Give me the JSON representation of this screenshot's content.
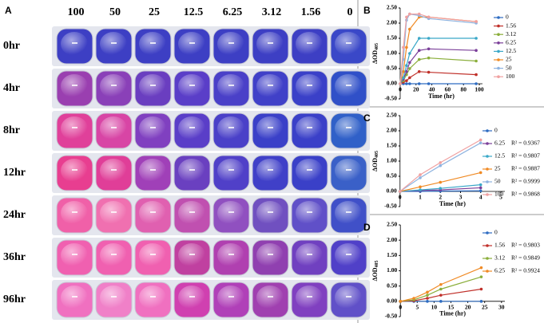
{
  "panel_a": {
    "label": "A",
    "columns": [
      "100",
      "50",
      "25",
      "12.5",
      "6.25",
      "3.12",
      "1.56",
      "0"
    ],
    "rows": [
      "0hr",
      "4hr",
      "8hr",
      "12hr",
      "24hr",
      "36hr",
      "96hr"
    ],
    "well_colors": [
      [
        "#3d3fc4",
        "#3d3fc4",
        "#3d3fc4",
        "#3d3fc4",
        "#3d3fc4",
        "#3d3fc4",
        "#3d3fc4",
        "#3a48c8"
      ],
      [
        "#9a3fb0",
        "#8a40b8",
        "#6a3ec0",
        "#5a3ec8",
        "#4a40c8",
        "#4040c8",
        "#3a40c8",
        "#3050c8"
      ],
      [
        "#e0409a",
        "#d845a5",
        "#8040c0",
        "#5a3ec8",
        "#4a40c8",
        "#3a40c8",
        "#3a40c8",
        "#3060c8"
      ],
      [
        "#e83e90",
        "#e03e98",
        "#a040b8",
        "#6a40c0",
        "#5040c8",
        "#4040c8",
        "#3a40c8",
        "#3a60c8"
      ],
      [
        "#f060a8",
        "#f070b0",
        "#e060b0",
        "#c050b0",
        "#9050c0",
        "#7050c0",
        "#6050c8",
        "#4050c8"
      ],
      [
        "#f060b0",
        "#f060b0",
        "#f060b0",
        "#c040a0",
        "#b040b0",
        "#9040b0",
        "#7040c0",
        "#5040c8"
      ],
      [
        "#f070c0",
        "#f080c8",
        "#f070c0",
        "#d040b0",
        "#b040b8",
        "#a040b0",
        "#8040c0",
        "#6050c8"
      ]
    ]
  },
  "chart_data": [
    {
      "type": "line",
      "panel": "B",
      "ylabel": "ΔOD",
      "ylabel_subscript": "405",
      "xlabel": "Time (hr)",
      "x": [
        0,
        4,
        8,
        12,
        24,
        36,
        96
      ],
      "xlim": [
        -4,
        104
      ],
      "xticks": [
        0,
        20,
        40,
        60,
        80,
        100
      ],
      "ylim": [
        -0.5,
        2.5
      ],
      "yticks": [
        {
          "value": -0.5,
          "label": "-0.50"
        },
        {
          "value": 0,
          "label": "0.00"
        },
        {
          "value": 0.5,
          "label": "0.50"
        },
        {
          "value": 1,
          "label": "1.00"
        },
        {
          "value": 1.5,
          "label": "1.50"
        },
        {
          "value": 2,
          "label": "2.00"
        },
        {
          "value": 2.5,
          "label": "2.50"
        }
      ],
      "series": [
        {
          "name": "0",
          "color": "#2e6cc2",
          "values": [
            0,
            0,
            0,
            0,
            0,
            0,
            0
          ]
        },
        {
          "name": "1.56",
          "color": "#c0302a",
          "values": [
            0,
            0.05,
            0.1,
            0.2,
            0.4,
            0.38,
            0.3
          ]
        },
        {
          "name": "3.12",
          "color": "#8aae3a",
          "values": [
            0,
            0.1,
            0.3,
            0.5,
            0.8,
            0.85,
            0.75
          ]
        },
        {
          "name": "6.25",
          "color": "#7b3f99",
          "values": [
            0,
            0.15,
            0.4,
            0.7,
            1.1,
            1.15,
            1.1
          ]
        },
        {
          "name": "12.5",
          "color": "#3aa8c8",
          "values": [
            0,
            0.2,
            0.6,
            1.0,
            1.5,
            1.5,
            1.5
          ]
        },
        {
          "name": "25",
          "color": "#f08a24",
          "values": [
            0,
            0.4,
            1.2,
            1.8,
            2.2,
            2.2,
            2.05
          ]
        },
        {
          "name": "50",
          "color": "#8fb4e0",
          "values": [
            0,
            0.8,
            2.1,
            2.3,
            2.25,
            2.15,
            2.0
          ]
        },
        {
          "name": "100",
          "color": "#f0a0a0",
          "values": [
            0,
            1.2,
            2.2,
            2.3,
            2.3,
            2.2,
            2.05
          ]
        }
      ]
    },
    {
      "type": "line",
      "panel": "C",
      "ylabel": "ΔOD",
      "ylabel_subscript": "405",
      "xlabel": "Time (hr)",
      "x": [
        0,
        1,
        2,
        4
      ],
      "xlim": [
        -0.15,
        5.2
      ],
      "xticks": [
        0,
        1,
        2,
        3,
        4,
        5
      ],
      "ylim": [
        -0.5,
        2.5
      ],
      "yticks": [
        {
          "value": -0.5,
          "label": "-0.50"
        },
        {
          "value": 0,
          "label": "0.00"
        },
        {
          "value": 0.5,
          "label": "0.50"
        },
        {
          "value": 1,
          "label": "1.00"
        },
        {
          "value": 1.5,
          "label": "1.50"
        },
        {
          "value": 2,
          "label": "2.00"
        },
        {
          "value": 2.5,
          "label": "2.50"
        }
      ],
      "series": [
        {
          "name": "0",
          "color": "#2e6cc2",
          "values": [
            0,
            0,
            0.01,
            0.02
          ]
        },
        {
          "name": "6.25",
          "color": "#7b3f99",
          "r2": "R² = 0.9367",
          "values": [
            0,
            0.03,
            0.05,
            0.12
          ]
        },
        {
          "name": "12.5",
          "color": "#3aa8c8",
          "r2": "R² = 0.9807",
          "values": [
            0,
            0.05,
            0.1,
            0.22
          ]
        },
        {
          "name": "25",
          "color": "#f08a24",
          "r2": "R² = 0.9887",
          "values": [
            0,
            0.15,
            0.3,
            0.62
          ]
        },
        {
          "name": "50",
          "color": "#8fb4e0",
          "r2": "R² = 0.9999",
          "values": [
            0,
            0.45,
            0.85,
            1.6
          ]
        },
        {
          "name": "100",
          "color": "#f0a0a0",
          "r2": "R² = 0.9868",
          "values": [
            0,
            0.55,
            0.95,
            1.7
          ]
        }
      ]
    },
    {
      "type": "line",
      "panel": "D",
      "ylabel": "ΔOD",
      "ylabel_subscript": "405",
      "xlabel": "Time (hr)",
      "x": [
        0,
        4,
        8,
        12,
        24
      ],
      "xlim": [
        -1,
        31
      ],
      "xticks": [
        0,
        5,
        10,
        15,
        20,
        25,
        30
      ],
      "ylim": [
        -0.5,
        2.5
      ],
      "yticks": [
        {
          "value": -0.5,
          "label": "-0.50"
        },
        {
          "value": 0,
          "label": "0.00"
        },
        {
          "value": 0.5,
          "label": "0.50"
        },
        {
          "value": 1,
          "label": "1.00"
        },
        {
          "value": 1.5,
          "label": "1.50"
        },
        {
          "value": 2,
          "label": "2.00"
        },
        {
          "value": 2.5,
          "label": "2.50"
        }
      ],
      "series": [
        {
          "name": "0",
          "color": "#2e6cc2",
          "values": [
            0,
            0,
            0,
            0,
            0
          ]
        },
        {
          "name": "1.56",
          "color": "#c0302a",
          "r2": "R² = 0.9803",
          "values": [
            0,
            0.02,
            0.1,
            0.2,
            0.4
          ]
        },
        {
          "name": "3.12",
          "color": "#8aae3a",
          "r2": "R² = 0.9849",
          "values": [
            0,
            0.05,
            0.2,
            0.4,
            0.8
          ]
        },
        {
          "name": "6.25",
          "color": "#f08a24",
          "r2": "R² = 0.9924",
          "values": [
            0,
            0.1,
            0.3,
            0.55,
            1.1
          ]
        }
      ]
    }
  ]
}
